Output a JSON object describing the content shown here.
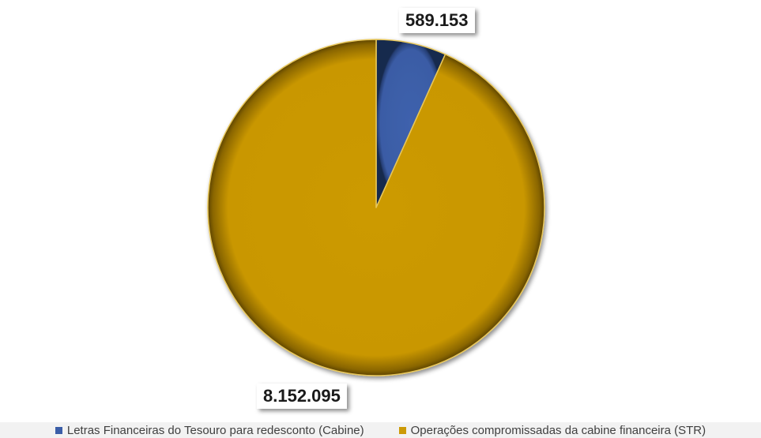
{
  "chart_data": {
    "type": "pie",
    "title": "",
    "series": [
      {
        "labels": [
          "Letras Financeiras do Tesouro para redesconto (Cabine)",
          "Operações compromissadas da cabine financeira (STR)"
        ],
        "values": [
          589153,
          8152095
        ],
        "display_values": [
          "589.153",
          "8.152.095"
        ],
        "colors": [
          "#3b5ea8",
          "#cc9a06"
        ]
      }
    ],
    "legend_position": "bottom",
    "start_angle_deg": 0,
    "direction": "clockwise"
  }
}
